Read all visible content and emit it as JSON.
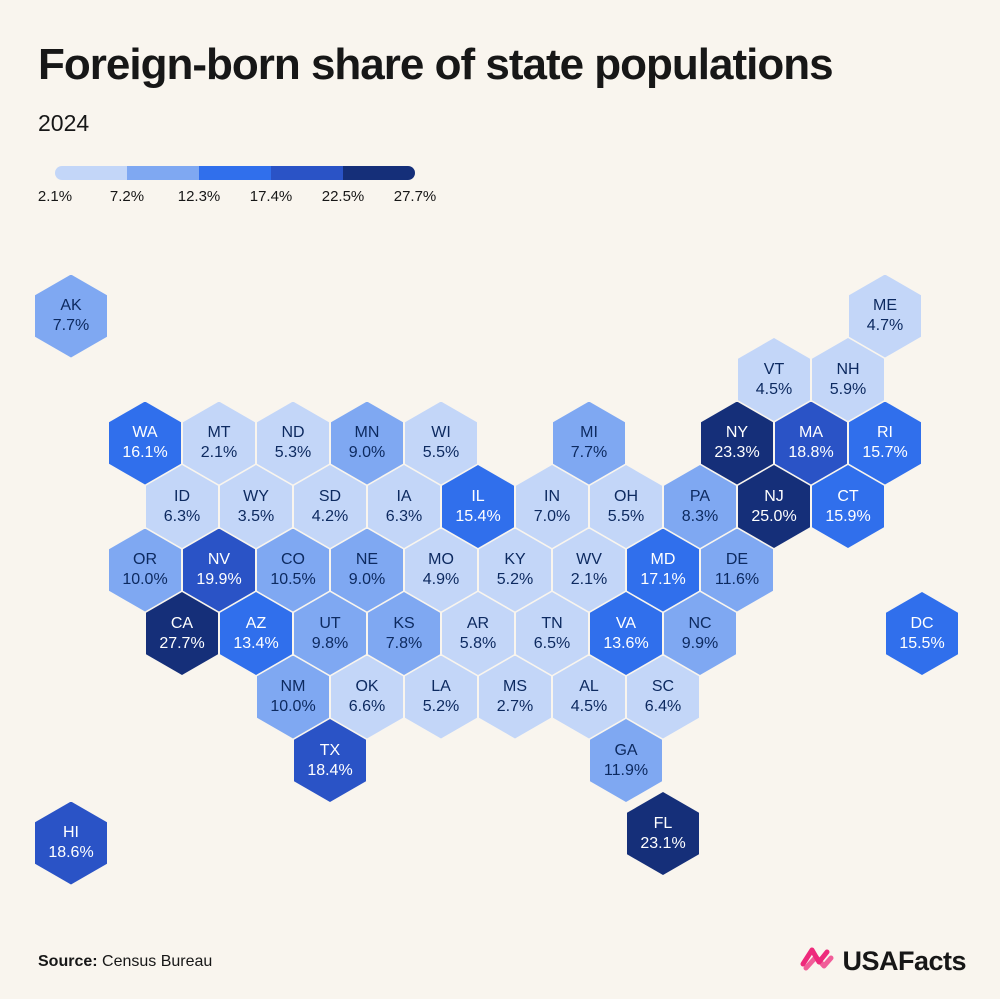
{
  "header": {
    "title": "Foreign-born share of state populations",
    "subtitle": "2024"
  },
  "footer": {
    "source_label": "Source:",
    "source_value": " Census Bureau",
    "brand": "USAFacts"
  },
  "colors": {
    "background": "#f9f5ee",
    "title_text": "#171717",
    "brand_pink": "#ee2a7b"
  },
  "chart_data": {
    "type": "heatmap",
    "subtype": "hex-cartogram",
    "title": "Foreign-born share of state populations",
    "subtitle": "2024",
    "unit": "%",
    "legend_position": "top-left",
    "legend": {
      "stops": [
        "2.1%",
        "7.2%",
        "12.3%",
        "17.4%",
        "22.5%",
        "27.7%"
      ],
      "thresholds": [
        7.2,
        12.3,
        17.4,
        22.5
      ],
      "colors": [
        "#c3d6f8",
        "#7fa8f2",
        "#306fec",
        "#2a53c6",
        "#152f79"
      ]
    },
    "text_colors": {
      "light_tiles": "#0d2a60",
      "dark_tiles": "#ffffff"
    },
    "states": [
      {
        "abbr": "AK",
        "value": 7.7,
        "col": 0,
        "row": 0
      },
      {
        "abbr": "ME",
        "value": 4.7,
        "col": 22,
        "row": 0
      },
      {
        "abbr": "VT",
        "value": 4.5,
        "col": 19,
        "row": 1
      },
      {
        "abbr": "NH",
        "value": 5.9,
        "col": 21,
        "row": 1
      },
      {
        "abbr": "WA",
        "value": 16.1,
        "col": 2,
        "row": 2
      },
      {
        "abbr": "MT",
        "value": 2.1,
        "col": 4,
        "row": 2
      },
      {
        "abbr": "ND",
        "value": 5.3,
        "col": 6,
        "row": 2
      },
      {
        "abbr": "MN",
        "value": 9.0,
        "col": 8,
        "row": 2
      },
      {
        "abbr": "WI",
        "value": 5.5,
        "col": 10,
        "row": 2
      },
      {
        "abbr": "MI",
        "value": 7.7,
        "col": 14,
        "row": 2
      },
      {
        "abbr": "NY",
        "value": 23.3,
        "col": 18,
        "row": 2
      },
      {
        "abbr": "MA",
        "value": 18.8,
        "col": 20,
        "row": 2
      },
      {
        "abbr": "RI",
        "value": 15.7,
        "col": 22,
        "row": 2
      },
      {
        "abbr": "ID",
        "value": 6.3,
        "col": 3,
        "row": 3
      },
      {
        "abbr": "WY",
        "value": 3.5,
        "col": 5,
        "row": 3
      },
      {
        "abbr": "SD",
        "value": 4.2,
        "col": 7,
        "row": 3
      },
      {
        "abbr": "IA",
        "value": 6.3,
        "col": 9,
        "row": 3
      },
      {
        "abbr": "IL",
        "value": 15.4,
        "col": 11,
        "row": 3
      },
      {
        "abbr": "IN",
        "value": 7.0,
        "col": 13,
        "row": 3
      },
      {
        "abbr": "OH",
        "value": 5.5,
        "col": 15,
        "row": 3
      },
      {
        "abbr": "PA",
        "value": 8.3,
        "col": 17,
        "row": 3
      },
      {
        "abbr": "NJ",
        "value": 25.0,
        "col": 19,
        "row": 3
      },
      {
        "abbr": "CT",
        "value": 15.9,
        "col": 21,
        "row": 3
      },
      {
        "abbr": "OR",
        "value": 10.0,
        "col": 2,
        "row": 4
      },
      {
        "abbr": "NV",
        "value": 19.9,
        "col": 4,
        "row": 4
      },
      {
        "abbr": "CO",
        "value": 10.5,
        "col": 6,
        "row": 4
      },
      {
        "abbr": "NE",
        "value": 9.0,
        "col": 8,
        "row": 4
      },
      {
        "abbr": "MO",
        "value": 4.9,
        "col": 10,
        "row": 4
      },
      {
        "abbr": "KY",
        "value": 5.2,
        "col": 12,
        "row": 4
      },
      {
        "abbr": "WV",
        "value": 2.1,
        "col": 14,
        "row": 4
      },
      {
        "abbr": "MD",
        "value": 17.1,
        "col": 16,
        "row": 4
      },
      {
        "abbr": "DE",
        "value": 11.6,
        "col": 18,
        "row": 4
      },
      {
        "abbr": "CA",
        "value": 27.7,
        "col": 3,
        "row": 5
      },
      {
        "abbr": "AZ",
        "value": 13.4,
        "col": 5,
        "row": 5
      },
      {
        "abbr": "UT",
        "value": 9.8,
        "col": 7,
        "row": 5
      },
      {
        "abbr": "KS",
        "value": 7.8,
        "col": 9,
        "row": 5
      },
      {
        "abbr": "AR",
        "value": 5.8,
        "col": 11,
        "row": 5
      },
      {
        "abbr": "TN",
        "value": 6.5,
        "col": 13,
        "row": 5
      },
      {
        "abbr": "VA",
        "value": 13.6,
        "col": 15,
        "row": 5
      },
      {
        "abbr": "NC",
        "value": 9.9,
        "col": 17,
        "row": 5
      },
      {
        "abbr": "DC",
        "value": 15.5,
        "col": 23,
        "row": 5
      },
      {
        "abbr": "NM",
        "value": 10.0,
        "col": 6,
        "row": 6
      },
      {
        "abbr": "OK",
        "value": 6.6,
        "col": 8,
        "row": 6
      },
      {
        "abbr": "LA",
        "value": 5.2,
        "col": 10,
        "row": 6
      },
      {
        "abbr": "MS",
        "value": 2.7,
        "col": 12,
        "row": 6
      },
      {
        "abbr": "AL",
        "value": 4.5,
        "col": 14,
        "row": 6
      },
      {
        "abbr": "SC",
        "value": 6.4,
        "col": 16,
        "row": 6
      },
      {
        "abbr": "TX",
        "value": 18.4,
        "col": 7,
        "row": 7
      },
      {
        "abbr": "GA",
        "value": 11.9,
        "col": 15,
        "row": 7
      },
      {
        "abbr": "FL",
        "value": 23.1,
        "col": 16,
        "row": 8.15
      },
      {
        "abbr": "HI",
        "value": 18.6,
        "col": 0,
        "row": 8.3
      }
    ]
  }
}
